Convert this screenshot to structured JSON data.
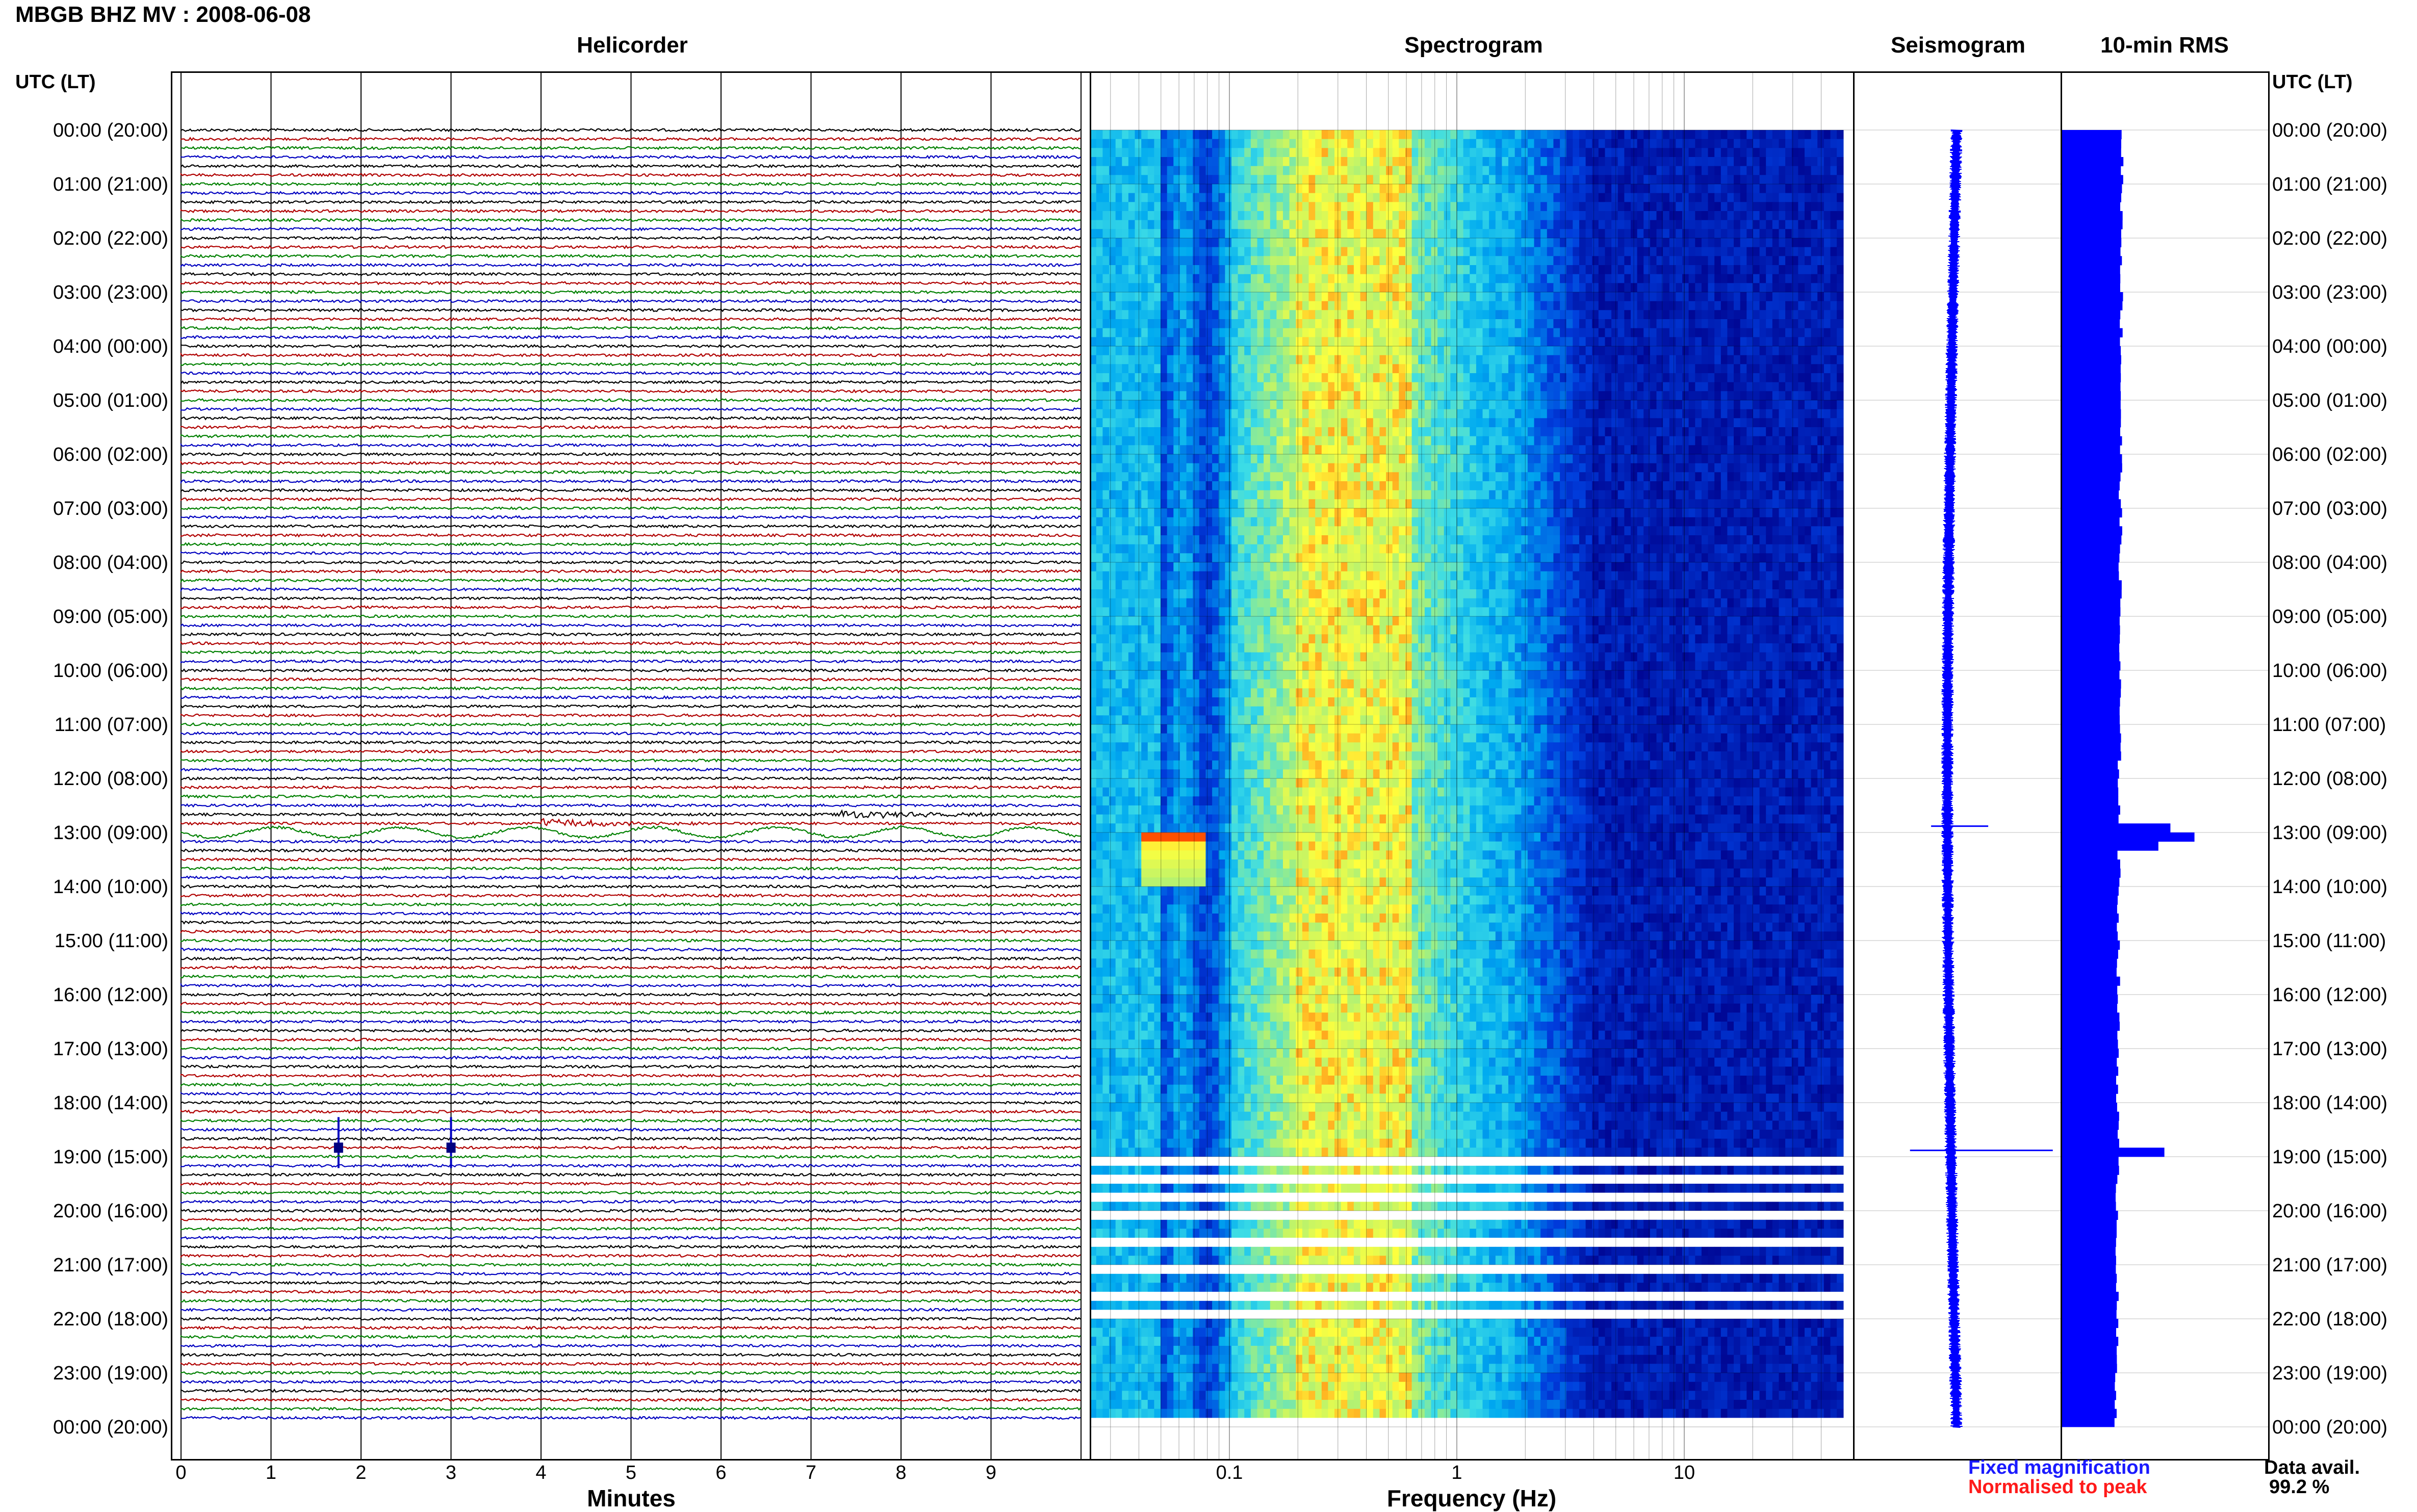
{
  "header": {
    "title": "MBGB BHZ MV : 2008-06-08"
  },
  "panels": {
    "helicorder": "Helicorder",
    "spectrogram": "Spectrogram",
    "seismogram": "Seismogram",
    "rms": "10-min RMS"
  },
  "time_axis": {
    "label_left": "UTC (LT)",
    "label_right": "UTC (LT)",
    "ticks": [
      "00:00 (20:00)",
      "01:00 (21:00)",
      "02:00 (22:00)",
      "03:00 (23:00)",
      "04:00 (00:00)",
      "05:00 (01:00)",
      "06:00 (02:00)",
      "07:00 (03:00)",
      "08:00 (04:00)",
      "09:00 (05:00)",
      "10:00 (06:00)",
      "11:00 (07:00)",
      "12:00 (08:00)",
      "13:00 (09:00)",
      "14:00 (10:00)",
      "15:00 (11:00)",
      "16:00 (12:00)",
      "17:00 (13:00)",
      "18:00 (14:00)",
      "19:00 (15:00)",
      "20:00 (16:00)",
      "21:00 (17:00)",
      "22:00 (18:00)",
      "23:00 (19:00)",
      "00:00 (20:00)"
    ]
  },
  "helicorder_axis": {
    "ticks": [
      "0",
      "1",
      "2",
      "3",
      "4",
      "5",
      "6",
      "7",
      "8",
      "9"
    ],
    "label": "Minutes"
  },
  "spectrogram_axis": {
    "ticks": [
      "0.1",
      "1",
      "10"
    ],
    "label": "Frequency (Hz)"
  },
  "legend": {
    "fixed": "Fixed magnification",
    "normalised": "Normalised to peak"
  },
  "availability": {
    "label": "Data avail.",
    "value": "99.2 %"
  },
  "colors": {
    "trace_cycle": [
      "#000000",
      "#b00000",
      "#008000",
      "#0000c0"
    ],
    "spectro_low": "#00008b",
    "spectro_mid": "#33ccff",
    "spectro_high": "#ffff33",
    "spectro_peak": "#ff4000",
    "rms_bar": "#0000ff",
    "seismogram_trace": "#0000ff"
  },
  "chart_data": [
    {
      "type": "line",
      "panel": "helicorder",
      "xlabel": "Minutes",
      "xlim": [
        0,
        10
      ],
      "rows_per_hour": 6,
      "row_minutes": 10,
      "events": [
        {
          "time_utc": "12:40",
          "minute": 7.3,
          "color": "green",
          "note": "burst"
        },
        {
          "time_utc": "12:50",
          "minute": 4.0,
          "color": "darkred",
          "note": "burst"
        },
        {
          "time_utc": "13:00",
          "minute": 0.0,
          "color": "blue",
          "note": "long-period swell"
        },
        {
          "time_utc": "18:50",
          "minute": 1.75,
          "color": "blue",
          "note": "spike"
        },
        {
          "time_utc": "18:50",
          "minute": 3.0,
          "color": "blue",
          "note": "spike"
        }
      ]
    },
    {
      "type": "heatmap",
      "panel": "spectrogram",
      "xlabel": "Frequency (Hz)",
      "xscale": "log",
      "xlim": [
        0.02,
        50
      ],
      "gaps_utc": [
        "19:00",
        "19:20",
        "19:40",
        "20:00",
        "20:30",
        "21:00",
        "21:30",
        "21:50",
        "23:50"
      ],
      "peak_event": {
        "time_utc": "13:00",
        "freq_range_hz": [
          0.04,
          0.08
        ]
      }
    },
    {
      "type": "bar",
      "panel": "rms",
      "orientation": "horizontal",
      "interval_minutes": 10,
      "baseline": 1.0,
      "peaks": [
        {
          "time_utc": "12:50",
          "value": 1.8
        },
        {
          "time_utc": "13:00",
          "value": 2.2
        },
        {
          "time_utc": "13:10",
          "value": 1.6
        },
        {
          "time_utc": "18:50",
          "value": 1.7
        }
      ]
    }
  ]
}
